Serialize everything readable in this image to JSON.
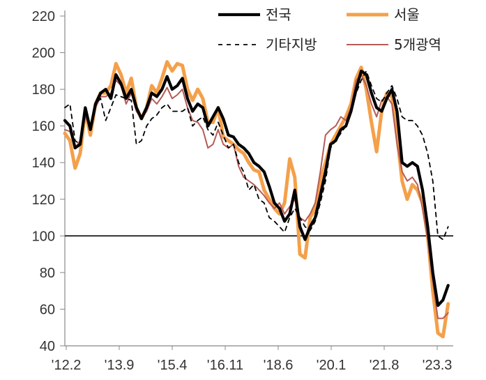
{
  "chart_data": {
    "type": "line",
    "x_tick_labels": [
      "'12.2",
      "'13.9",
      "'15.4",
      "'16.11",
      "'18.6",
      "'20.1",
      "'21.8",
      "'23.3"
    ],
    "ylim": [
      40,
      220
    ],
    "y_ticks": [
      40,
      60,
      80,
      100,
      120,
      140,
      160,
      180,
      200,
      220
    ],
    "reference_line": 100,
    "legend_position": "top",
    "colors": {
      "전국": "#000000",
      "서울": "#F4A04A",
      "기타지방": "#000000",
      "5개광역": "#B55B57"
    },
    "series": [
      {
        "name": "전국",
        "values": [
          [
            0,
            163
          ],
          [
            2,
            160
          ],
          [
            4,
            148
          ],
          [
            6,
            150
          ],
          [
            8,
            170
          ],
          [
            10,
            158
          ],
          [
            12,
            172
          ],
          [
            14,
            178
          ],
          [
            16,
            180
          ],
          [
            18,
            175
          ],
          [
            20,
            188
          ],
          [
            22,
            183
          ],
          [
            24,
            175
          ],
          [
            26,
            180
          ],
          [
            28,
            170
          ],
          [
            30,
            164
          ],
          [
            32,
            170
          ],
          [
            34,
            178
          ],
          [
            36,
            176
          ],
          [
            38,
            180
          ],
          [
            40,
            187
          ],
          [
            42,
            180
          ],
          [
            44,
            182
          ],
          [
            46,
            186
          ],
          [
            48,
            175
          ],
          [
            50,
            168
          ],
          [
            52,
            172
          ],
          [
            54,
            170
          ],
          [
            56,
            160
          ],
          [
            58,
            165
          ],
          [
            60,
            170
          ],
          [
            62,
            164
          ],
          [
            64,
            155
          ],
          [
            66,
            154
          ],
          [
            68,
            150
          ],
          [
            70,
            148
          ],
          [
            72,
            145
          ],
          [
            74,
            140
          ],
          [
            76,
            138
          ],
          [
            78,
            135
          ],
          [
            80,
            127
          ],
          [
            82,
            118
          ],
          [
            84,
            115
          ],
          [
            86,
            108
          ],
          [
            88,
            112
          ],
          [
            90,
            125
          ],
          [
            92,
            105
          ],
          [
            94,
            98
          ],
          [
            96,
            105
          ],
          [
            98,
            110
          ],
          [
            100,
            122
          ],
          [
            102,
            135
          ],
          [
            104,
            150
          ],
          [
            106,
            152
          ],
          [
            108,
            158
          ],
          [
            110,
            160
          ],
          [
            112,
            168
          ],
          [
            114,
            180
          ],
          [
            116,
            190
          ],
          [
            118,
            188
          ],
          [
            120,
            178
          ],
          [
            122,
            170
          ],
          [
            124,
            168
          ],
          [
            126,
            175
          ],
          [
            128,
            180
          ],
          [
            130,
            168
          ],
          [
            132,
            140
          ],
          [
            134,
            138
          ],
          [
            136,
            140
          ],
          [
            138,
            138
          ],
          [
            140,
            125
          ],
          [
            142,
            105
          ],
          [
            144,
            80
          ],
          [
            146,
            62
          ],
          [
            148,
            65
          ],
          [
            150,
            73
          ]
        ]
      },
      {
        "name": "서울",
        "values": [
          [
            0,
            156
          ],
          [
            2,
            152
          ],
          [
            4,
            137
          ],
          [
            6,
            145
          ],
          [
            8,
            168
          ],
          [
            10,
            155
          ],
          [
            12,
            172
          ],
          [
            14,
            178
          ],
          [
            16,
            178
          ],
          [
            18,
            182
          ],
          [
            20,
            194
          ],
          [
            22,
            188
          ],
          [
            24,
            178
          ],
          [
            26,
            186
          ],
          [
            28,
            170
          ],
          [
            30,
            164
          ],
          [
            32,
            170
          ],
          [
            34,
            182
          ],
          [
            36,
            178
          ],
          [
            38,
            186
          ],
          [
            40,
            195
          ],
          [
            42,
            190
          ],
          [
            44,
            194
          ],
          [
            46,
            193
          ],
          [
            48,
            180
          ],
          [
            50,
            174
          ],
          [
            52,
            180
          ],
          [
            54,
            175
          ],
          [
            56,
            162
          ],
          [
            58,
            162
          ],
          [
            60,
            170
          ],
          [
            62,
            154
          ],
          [
            64,
            152
          ],
          [
            66,
            150
          ],
          [
            68,
            147
          ],
          [
            70,
            145
          ],
          [
            72,
            140
          ],
          [
            74,
            136
          ],
          [
            76,
            135
          ],
          [
            78,
            125
          ],
          [
            80,
            120
          ],
          [
            82,
            115
          ],
          [
            84,
            112
          ],
          [
            86,
            118
          ],
          [
            88,
            142
          ],
          [
            90,
            132
          ],
          [
            92,
            90
          ],
          [
            94,
            88
          ],
          [
            96,
            110
          ],
          [
            98,
            115
          ],
          [
            100,
            130
          ],
          [
            102,
            140
          ],
          [
            104,
            150
          ],
          [
            106,
            155
          ],
          [
            108,
            160
          ],
          [
            110,
            165
          ],
          [
            112,
            172
          ],
          [
            114,
            186
          ],
          [
            116,
            192
          ],
          [
            118,
            180
          ],
          [
            120,
            162
          ],
          [
            122,
            146
          ],
          [
            124,
            168
          ],
          [
            126,
            178
          ],
          [
            128,
            176
          ],
          [
            130,
            155
          ],
          [
            132,
            130
          ],
          [
            134,
            120
          ],
          [
            136,
            128
          ],
          [
            138,
            125
          ],
          [
            140,
            118
          ],
          [
            142,
            100
          ],
          [
            144,
            70
          ],
          [
            146,
            47
          ],
          [
            148,
            45
          ],
          [
            150,
            63
          ]
        ]
      },
      {
        "name": "기타지방",
        "values": [
          [
            0,
            170
          ],
          [
            2,
            172
          ],
          [
            4,
            152
          ],
          [
            6,
            150
          ],
          [
            8,
            168
          ],
          [
            10,
            160
          ],
          [
            12,
            172
          ],
          [
            14,
            175
          ],
          [
            16,
            163
          ],
          [
            18,
            170
          ],
          [
            20,
            177
          ],
          [
            22,
            176
          ],
          [
            24,
            175
          ],
          [
            26,
            174
          ],
          [
            28,
            150
          ],
          [
            30,
            152
          ],
          [
            32,
            160
          ],
          [
            34,
            164
          ],
          [
            36,
            166
          ],
          [
            38,
            170
          ],
          [
            40,
            172
          ],
          [
            42,
            168
          ],
          [
            44,
            168
          ],
          [
            46,
            168
          ],
          [
            48,
            170
          ],
          [
            50,
            160
          ],
          [
            52,
            163
          ],
          [
            54,
            165
          ],
          [
            56,
            158
          ],
          [
            58,
            155
          ],
          [
            60,
            162
          ],
          [
            62,
            155
          ],
          [
            64,
            148
          ],
          [
            66,
            150
          ],
          [
            68,
            140
          ],
          [
            70,
            135
          ],
          [
            72,
            125
          ],
          [
            74,
            128
          ],
          [
            76,
            120
          ],
          [
            78,
            118
          ],
          [
            80,
            110
          ],
          [
            82,
            108
          ],
          [
            84,
            105
          ],
          [
            86,
            102
          ],
          [
            88,
            110
          ],
          [
            90,
            115
          ],
          [
            92,
            110
          ],
          [
            94,
            105
          ],
          [
            96,
            103
          ],
          [
            98,
            108
          ],
          [
            100,
            118
          ],
          [
            102,
            130
          ],
          [
            104,
            148
          ],
          [
            106,
            152
          ],
          [
            108,
            156
          ],
          [
            110,
            160
          ],
          [
            112,
            168
          ],
          [
            114,
            178
          ],
          [
            116,
            185
          ],
          [
            118,
            190
          ],
          [
            120,
            182
          ],
          [
            122,
            175
          ],
          [
            124,
            173
          ],
          [
            126,
            178
          ],
          [
            128,
            182
          ],
          [
            130,
            175
          ],
          [
            132,
            165
          ],
          [
            134,
            163
          ],
          [
            136,
            163
          ],
          [
            138,
            160
          ],
          [
            140,
            155
          ],
          [
            142,
            145
          ],
          [
            144,
            130
          ],
          [
            146,
            100
          ],
          [
            148,
            98
          ],
          [
            150,
            105
          ]
        ]
      },
      {
        "name": "5개광역",
        "values": [
          [
            0,
            158
          ],
          [
            2,
            157
          ],
          [
            4,
            148
          ],
          [
            6,
            152
          ],
          [
            8,
            165
          ],
          [
            10,
            160
          ],
          [
            12,
            170
          ],
          [
            14,
            176
          ],
          [
            16,
            176
          ],
          [
            18,
            178
          ],
          [
            20,
            185
          ],
          [
            22,
            182
          ],
          [
            24,
            172
          ],
          [
            26,
            178
          ],
          [
            28,
            168
          ],
          [
            30,
            164
          ],
          [
            32,
            168
          ],
          [
            34,
            175
          ],
          [
            36,
            172
          ],
          [
            38,
            176
          ],
          [
            40,
            181
          ],
          [
            42,
            175
          ],
          [
            44,
            177
          ],
          [
            46,
            180
          ],
          [
            48,
            170
          ],
          [
            50,
            163
          ],
          [
            52,
            162
          ],
          [
            54,
            158
          ],
          [
            56,
            148
          ],
          [
            58,
            150
          ],
          [
            60,
            158
          ],
          [
            62,
            150
          ],
          [
            64,
            148
          ],
          [
            66,
            150
          ],
          [
            68,
            138
          ],
          [
            70,
            132
          ],
          [
            72,
            130
          ],
          [
            74,
            128
          ],
          [
            76,
            125
          ],
          [
            78,
            122
          ],
          [
            80,
            118
          ],
          [
            82,
            115
          ],
          [
            84,
            118
          ],
          [
            86,
            112
          ],
          [
            88,
            116
          ],
          [
            90,
            120
          ],
          [
            92,
            110
          ],
          [
            94,
            108
          ],
          [
            96,
            112
          ],
          [
            98,
            118
          ],
          [
            100,
            135
          ],
          [
            102,
            155
          ],
          [
            104,
            158
          ],
          [
            106,
            160
          ],
          [
            108,
            165
          ],
          [
            110,
            163
          ],
          [
            112,
            170
          ],
          [
            114,
            185
          ],
          [
            116,
            188
          ],
          [
            118,
            182
          ],
          [
            120,
            172
          ],
          [
            122,
            165
          ],
          [
            124,
            174
          ],
          [
            126,
            176
          ],
          [
            128,
            172
          ],
          [
            130,
            150
          ],
          [
            132,
            135
          ],
          [
            134,
            130
          ],
          [
            136,
            132
          ],
          [
            138,
            128
          ],
          [
            140,
            115
          ],
          [
            142,
            98
          ],
          [
            144,
            75
          ],
          [
            146,
            55
          ],
          [
            148,
            55
          ],
          [
            150,
            58
          ]
        ]
      }
    ]
  }
}
